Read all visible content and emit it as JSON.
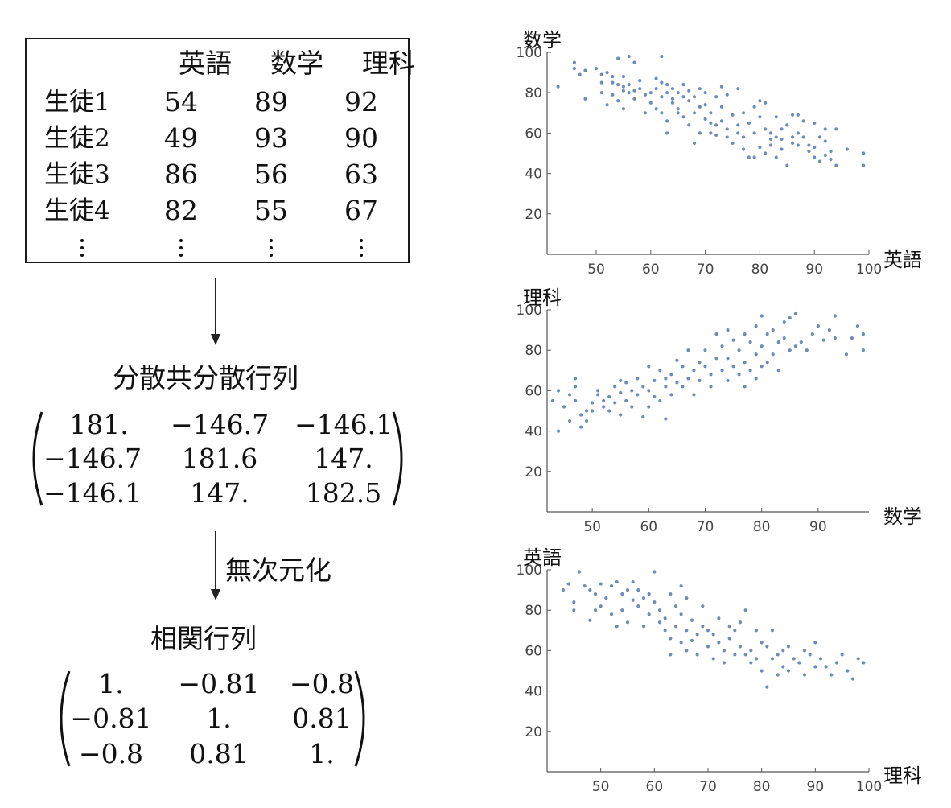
{
  "table": {
    "headers": [
      "英語",
      "数学",
      "理科"
    ],
    "rows": [
      {
        "label": "生徒1",
        "values": [
          "54",
          "89",
          "92"
        ]
      },
      {
        "label": "生徒2",
        "values": [
          "49",
          "93",
          "90"
        ]
      },
      {
        "label": "生徒3",
        "values": [
          "86",
          "56",
          "63"
        ]
      },
      {
        "label": "生徒4",
        "values": [
          "82",
          "55",
          "67"
        ]
      }
    ]
  },
  "covariance": {
    "title": "分散共分散行列",
    "matrix": [
      [
        "181.",
        "−146.7",
        "−146.1"
      ],
      [
        "−146.7",
        "181.6",
        "147."
      ],
      [
        "−146.1",
        "147.",
        "182.5"
      ]
    ]
  },
  "normalize_label": "無次元化",
  "correlation": {
    "title": "相関行列",
    "matrix": [
      [
        "1.",
        "−0.81",
        "−0.8"
      ],
      [
        "−0.81",
        "1.",
        "0.81"
      ],
      [
        "−0.8",
        "0.81",
        "1."
      ]
    ]
  },
  "colors": {
    "point": "#6f8bb8",
    "axis": "#555555"
  },
  "chart_data": [
    {
      "type": "scatter",
      "xlabel": "英語",
      "ylabel": "数学",
      "xticks": [
        50,
        60,
        70,
        80,
        90,
        100
      ],
      "yticks": [
        20,
        40,
        60,
        80,
        100
      ],
      "xlim": [
        41,
        100
      ],
      "ylim": [
        0,
        100
      ],
      "points": [
        [
          43,
          83
        ],
        [
          46,
          95
        ],
        [
          46,
          92
        ],
        [
          47,
          89
        ],
        [
          48,
          77
        ],
        [
          48,
          91
        ],
        [
          50,
          92
        ],
        [
          51,
          89
        ],
        [
          51,
          85
        ],
        [
          51,
          80
        ],
        [
          52,
          74
        ],
        [
          52,
          90
        ],
        [
          53,
          85
        ],
        [
          53,
          88
        ],
        [
          53,
          79
        ],
        [
          54,
          76
        ],
        [
          54,
          84
        ],
        [
          54,
          97
        ],
        [
          55,
          81
        ],
        [
          55,
          88
        ],
        [
          55,
          72
        ],
        [
          55,
          83
        ],
        [
          56,
          80
        ],
        [
          56,
          98
        ],
        [
          56,
          84
        ],
        [
          57,
          77
        ],
        [
          57,
          95
        ],
        [
          57,
          81
        ],
        [
          58,
          86
        ],
        [
          58,
          82
        ],
        [
          59,
          79
        ],
        [
          59,
          70
        ],
        [
          60,
          75
        ],
        [
          60,
          80
        ],
        [
          61,
          87
        ],
        [
          61,
          82
        ],
        [
          61,
          72
        ],
        [
          62,
          70
        ],
        [
          62,
          85
        ],
        [
          62,
          98
        ],
        [
          62,
          78
        ],
        [
          63,
          84
        ],
        [
          63,
          66
        ],
        [
          63,
          60
        ],
        [
          63,
          80
        ],
        [
          64,
          75
        ],
        [
          64,
          82
        ],
        [
          64,
          77
        ],
        [
          65,
          70
        ],
        [
          65,
          80
        ],
        [
          65,
          72
        ],
        [
          66,
          84
        ],
        [
          66,
          78
        ],
        [
          66,
          68
        ],
        [
          67,
          76
        ],
        [
          67,
          81
        ],
        [
          67,
          64
        ],
        [
          68,
          70
        ],
        [
          68,
          55
        ],
        [
          68,
          78
        ],
        [
          69,
          82
        ],
        [
          69,
          73
        ],
        [
          69,
          60
        ],
        [
          70,
          80
        ],
        [
          70,
          67
        ],
        [
          70,
          74
        ],
        [
          71,
          65
        ],
        [
          71,
          60
        ],
        [
          71,
          70
        ],
        [
          72,
          78
        ],
        [
          72,
          64
        ],
        [
          72,
          59
        ],
        [
          73,
          83
        ],
        [
          73,
          73
        ],
        [
          73,
          66
        ],
        [
          74,
          79
        ],
        [
          74,
          58
        ],
        [
          74,
          62
        ],
        [
          75,
          69
        ],
        [
          75,
          55
        ],
        [
          76,
          82
        ],
        [
          76,
          64
        ],
        [
          76,
          60
        ],
        [
          77,
          70
        ],
        [
          77,
          58
        ],
        [
          77,
          52
        ],
        [
          78,
          65
        ],
        [
          78,
          48
        ],
        [
          79,
          73
        ],
        [
          79,
          60
        ],
        [
          79,
          48
        ],
        [
          80,
          76
        ],
        [
          80,
          68
        ],
        [
          80,
          53
        ],
        [
          81,
          62
        ],
        [
          81,
          75
        ],
        [
          81,
          50
        ],
        [
          82,
          57
        ],
        [
          82,
          60
        ],
        [
          82,
          54
        ],
        [
          83,
          68
        ],
        [
          83,
          58
        ],
        [
          83,
          48
        ],
        [
          84,
          57
        ],
        [
          84,
          62
        ],
        [
          84,
          52
        ],
        [
          85,
          64
        ],
        [
          85,
          44
        ],
        [
          86,
          69
        ],
        [
          86,
          58
        ],
        [
          86,
          55
        ],
        [
          87,
          60
        ],
        [
          87,
          69
        ],
        [
          87,
          54
        ],
        [
          88,
          66
        ],
        [
          88,
          58
        ],
        [
          89,
          54
        ],
        [
          89,
          51
        ],
        [
          90,
          48
        ],
        [
          90,
          65
        ],
        [
          90,
          53
        ],
        [
          91,
          46
        ],
        [
          91,
          58
        ],
        [
          92,
          49
        ],
        [
          92,
          56
        ],
        [
          92,
          62
        ],
        [
          93,
          51
        ],
        [
          93,
          47
        ],
        [
          94,
          44
        ],
        [
          94,
          62
        ],
        [
          96,
          52
        ],
        [
          99,
          44
        ],
        [
          99,
          50
        ]
      ]
    },
    {
      "type": "scatter",
      "xlabel": "数学",
      "ylabel": "理科",
      "xticks": [
        50,
        60,
        70,
        80,
        90
      ],
      "yticks": [
        20,
        40,
        60,
        80,
        100
      ],
      "xlim": [
        42,
        99
      ],
      "ylim": [
        0,
        100
      ],
      "points": [
        [
          43,
          55
        ],
        [
          44,
          60
        ],
        [
          44,
          40
        ],
        [
          45,
          52
        ],
        [
          46,
          58
        ],
        [
          46,
          45
        ],
        [
          47,
          62
        ],
        [
          47,
          55
        ],
        [
          47,
          66
        ],
        [
          48,
          48
        ],
        [
          48,
          42
        ],
        [
          49,
          50
        ],
        [
          49,
          45
        ],
        [
          50,
          54
        ],
        [
          50,
          50
        ],
        [
          51,
          58
        ],
        [
          51,
          60
        ],
        [
          52,
          55
        ],
        [
          52,
          52
        ],
        [
          53,
          57
        ],
        [
          53,
          50
        ],
        [
          54,
          62
        ],
        [
          54,
          54
        ],
        [
          55,
          65
        ],
        [
          55,
          59
        ],
        [
          55,
          48
        ],
        [
          56,
          64
        ],
        [
          56,
          55
        ],
        [
          57,
          60
        ],
        [
          57,
          52
        ],
        [
          58,
          58
        ],
        [
          58,
          66
        ],
        [
          59,
          62
        ],
        [
          59,
          47
        ],
        [
          60,
          60
        ],
        [
          60,
          72
        ],
        [
          60,
          52
        ],
        [
          61,
          65
        ],
        [
          61,
          57
        ],
        [
          62,
          70
        ],
        [
          62,
          55
        ],
        [
          63,
          66
        ],
        [
          63,
          62
        ],
        [
          63,
          46
        ],
        [
          64,
          68
        ],
        [
          64,
          58
        ],
        [
          65,
          75
        ],
        [
          65,
          64
        ],
        [
          66,
          62
        ],
        [
          66,
          72
        ],
        [
          67,
          80
        ],
        [
          67,
          66
        ],
        [
          68,
          70
        ],
        [
          68,
          58
        ],
        [
          69,
          74
        ],
        [
          69,
          65
        ],
        [
          70,
          72
        ],
        [
          70,
          80
        ],
        [
          71,
          68
        ],
        [
          71,
          62
        ],
        [
          72,
          76
        ],
        [
          72,
          88
        ],
        [
          73,
          82
        ],
        [
          73,
          70
        ],
        [
          74,
          90
        ],
        [
          74,
          76
        ],
        [
          74,
          65
        ],
        [
          75,
          85
        ],
        [
          75,
          72
        ],
        [
          76,
          80
        ],
        [
          76,
          68
        ],
        [
          77,
          88
        ],
        [
          77,
          74
        ],
        [
          77,
          62
        ],
        [
          78,
          84
        ],
        [
          78,
          70
        ],
        [
          79,
          92
        ],
        [
          79,
          78
        ],
        [
          79,
          66
        ],
        [
          80,
          97
        ],
        [
          80,
          82
        ],
        [
          80,
          72
        ],
        [
          81,
          88
        ],
        [
          81,
          74
        ],
        [
          82,
          90
        ],
        [
          82,
          78
        ],
        [
          83,
          84
        ],
        [
          83,
          70
        ],
        [
          84,
          94
        ],
        [
          84,
          86
        ],
        [
          85,
          80
        ],
        [
          85,
          96
        ],
        [
          86,
          98
        ],
        [
          86,
          82
        ],
        [
          87,
          84
        ],
        [
          88,
          80
        ],
        [
          89,
          88
        ],
        [
          90,
          92
        ],
        [
          91,
          85
        ],
        [
          92,
          90
        ],
        [
          93,
          97
        ],
        [
          93,
          86
        ],
        [
          95,
          78
        ],
        [
          96,
          86
        ],
        [
          97,
          92
        ],
        [
          98,
          88
        ],
        [
          98,
          80
        ]
      ]
    },
    {
      "type": "scatter",
      "xlabel": "理科",
      "ylabel": "英語",
      "xticks": [
        50,
        60,
        70,
        80,
        90,
        100
      ],
      "yticks": [
        20,
        40,
        60,
        80,
        100
      ],
      "xlim": [
        40,
        100
      ],
      "ylim": [
        0,
        100
      ],
      "points": [
        [
          43,
          90
        ],
        [
          44,
          93
        ],
        [
          45,
          84
        ],
        [
          45,
          80
        ],
        [
          46,
          99
        ],
        [
          47,
          92
        ],
        [
          48,
          75
        ],
        [
          48,
          90
        ],
        [
          49,
          88
        ],
        [
          49,
          80
        ],
        [
          50,
          93
        ],
        [
          50,
          82
        ],
        [
          51,
          86
        ],
        [
          52,
          92
        ],
        [
          52,
          78
        ],
        [
          53,
          94
        ],
        [
          53,
          72
        ],
        [
          54,
          88
        ],
        [
          54,
          80
        ],
        [
          55,
          90
        ],
        [
          55,
          74
        ],
        [
          56,
          94
        ],
        [
          56,
          85
        ],
        [
          57,
          82
        ],
        [
          57,
          90
        ],
        [
          58,
          72
        ],
        [
          58,
          86
        ],
        [
          59,
          88
        ],
        [
          59,
          78
        ],
        [
          60,
          99
        ],
        [
          60,
          84
        ],
        [
          61,
          74
        ],
        [
          61,
          80
        ],
        [
          62,
          70
        ],
        [
          62,
          76
        ],
        [
          63,
          88
        ],
        [
          63,
          66
        ],
        [
          63,
          58
        ],
        [
          64,
          82
        ],
        [
          64,
          72
        ],
        [
          65,
          78
        ],
        [
          65,
          64
        ],
        [
          65,
          92
        ],
        [
          66,
          86
        ],
        [
          66,
          70
        ],
        [
          66,
          60
        ],
        [
          67,
          75
        ],
        [
          67,
          65
        ],
        [
          68,
          68
        ],
        [
          68,
          58
        ],
        [
          69,
          82
        ],
        [
          69,
          72
        ],
        [
          70,
          70
        ],
        [
          70,
          62
        ],
        [
          71,
          68
        ],
        [
          71,
          56
        ],
        [
          72,
          76
        ],
        [
          72,
          64
        ],
        [
          73,
          60
        ],
        [
          73,
          54
        ],
        [
          74,
          72
        ],
        [
          74,
          66
        ],
        [
          75,
          70
        ],
        [
          75,
          58
        ],
        [
          76,
          74
        ],
        [
          76,
          62
        ],
        [
          77,
          80
        ],
        [
          77,
          58
        ],
        [
          78,
          60
        ],
        [
          78,
          54
        ],
        [
          79,
          56
        ],
        [
          79,
          70
        ],
        [
          80,
          64
        ],
        [
          80,
          50
        ],
        [
          81,
          62
        ],
        [
          81,
          42
        ],
        [
          82,
          70
        ],
        [
          82,
          56
        ],
        [
          83,
          58
        ],
        [
          83,
          48
        ],
        [
          84,
          60
        ],
        [
          84,
          52
        ],
        [
          85,
          62
        ],
        [
          85,
          50
        ],
        [
          86,
          56
        ],
        [
          87,
          54
        ],
        [
          88,
          60
        ],
        [
          88,
          48
        ],
        [
          89,
          58
        ],
        [
          90,
          64
        ],
        [
          90,
          52
        ],
        [
          91,
          56
        ],
        [
          92,
          52
        ],
        [
          93,
          48
        ],
        [
          94,
          54
        ],
        [
          95,
          58
        ],
        [
          96,
          50
        ],
        [
          97,
          46
        ],
        [
          98,
          56
        ],
        [
          99,
          54
        ]
      ]
    }
  ]
}
